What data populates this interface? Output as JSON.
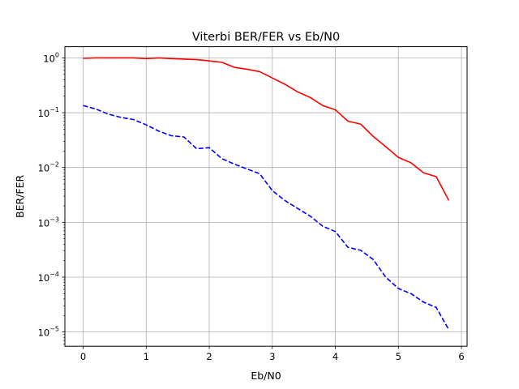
{
  "chart_data": {
    "type": "line",
    "title": "Viterbi BER/FER vs Eb/N0",
    "xlabel": "Eb/N0",
    "ylabel": "BER/FER",
    "xscale": "linear",
    "yscale": "log",
    "xlim": [
      -0.29,
      6.09
    ],
    "ylim": [
      5.5e-06,
      1.6
    ],
    "grid": true,
    "xticks": [
      {
        "value": 0,
        "label": "0"
      },
      {
        "value": 1,
        "label": "1"
      },
      {
        "value": 2,
        "label": "2"
      },
      {
        "value": 3,
        "label": "3"
      },
      {
        "value": 4,
        "label": "4"
      },
      {
        "value": 5,
        "label": "5"
      },
      {
        "value": 6,
        "label": "6"
      }
    ],
    "yticks": [
      {
        "value": 1e-05,
        "base": "10",
        "exp": "−5"
      },
      {
        "value": 0.0001,
        "base": "10",
        "exp": "−4"
      },
      {
        "value": 0.001,
        "base": "10",
        "exp": "−3"
      },
      {
        "value": 0.01,
        "base": "10",
        "exp": "−2"
      },
      {
        "value": 0.1,
        "base": "10",
        "exp": "−1"
      },
      {
        "value": 1,
        "base": "10",
        "exp": "0"
      }
    ],
    "x": [
      0,
      0.2,
      0.4,
      0.6,
      0.8,
      1.0,
      1.2,
      1.4,
      1.6,
      1.8,
      2.0,
      2.2,
      2.4,
      2.6,
      2.8,
      3.0,
      3.2,
      3.4,
      3.6,
      3.8,
      4.0,
      4.2,
      4.4,
      4.6,
      4.8,
      5.0,
      5.2,
      5.4,
      5.6,
      5.8
    ],
    "series": [
      {
        "color": "#ff0000",
        "linestyle": "solid",
        "values": [
          0.98,
          1.0,
          1.0,
          1.0,
          1.0,
          0.97,
          1.0,
          0.97,
          0.95,
          0.93,
          0.88,
          0.83,
          0.67,
          0.62,
          0.56,
          0.43,
          0.33,
          0.24,
          0.19,
          0.135,
          0.113,
          0.07,
          0.062,
          0.037,
          0.024,
          0.0153,
          0.0122,
          0.008,
          0.0068,
          0.0025
        ]
      },
      {
        "color": "#0000ff",
        "linestyle": "dashed",
        "values": [
          0.135,
          0.117,
          0.094,
          0.082,
          0.075,
          0.06,
          0.046,
          0.038,
          0.036,
          0.022,
          0.023,
          0.0145,
          0.0115,
          0.0094,
          0.0077,
          0.0038,
          0.0025,
          0.0018,
          0.0013,
          0.00085,
          0.00068,
          0.00035,
          0.00031,
          0.00021,
          0.0001,
          6.2e-05,
          5e-05,
          3.5e-05,
          2.8e-05,
          1.1e-05
        ]
      }
    ]
  }
}
